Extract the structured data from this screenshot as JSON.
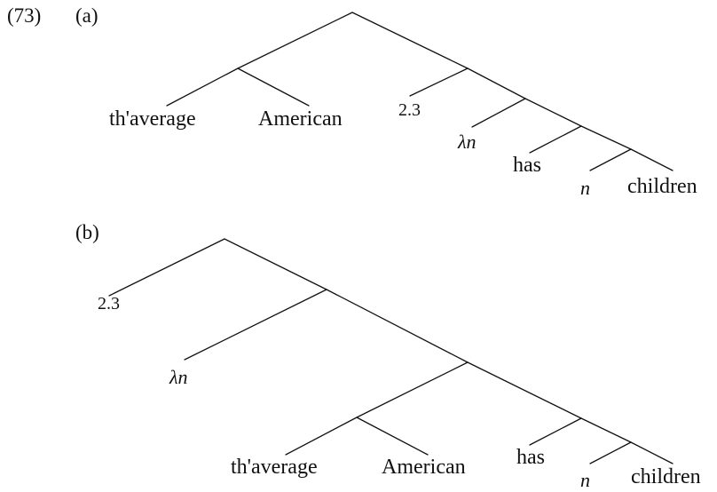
{
  "example": {
    "number": "(73)",
    "a": {
      "label": "(a)",
      "leaves": {
        "the_average": "th'average",
        "american": "American",
        "number": "2.3",
        "lambda_n": "λn",
        "has": "has",
        "n": "n",
        "children": "children"
      }
    },
    "b": {
      "label": "(b)",
      "leaves": {
        "number": "2.3",
        "lambda_n": "λn",
        "the_average": "th'average",
        "american": "American",
        "has": "has",
        "n": "n",
        "children": "children"
      }
    }
  }
}
